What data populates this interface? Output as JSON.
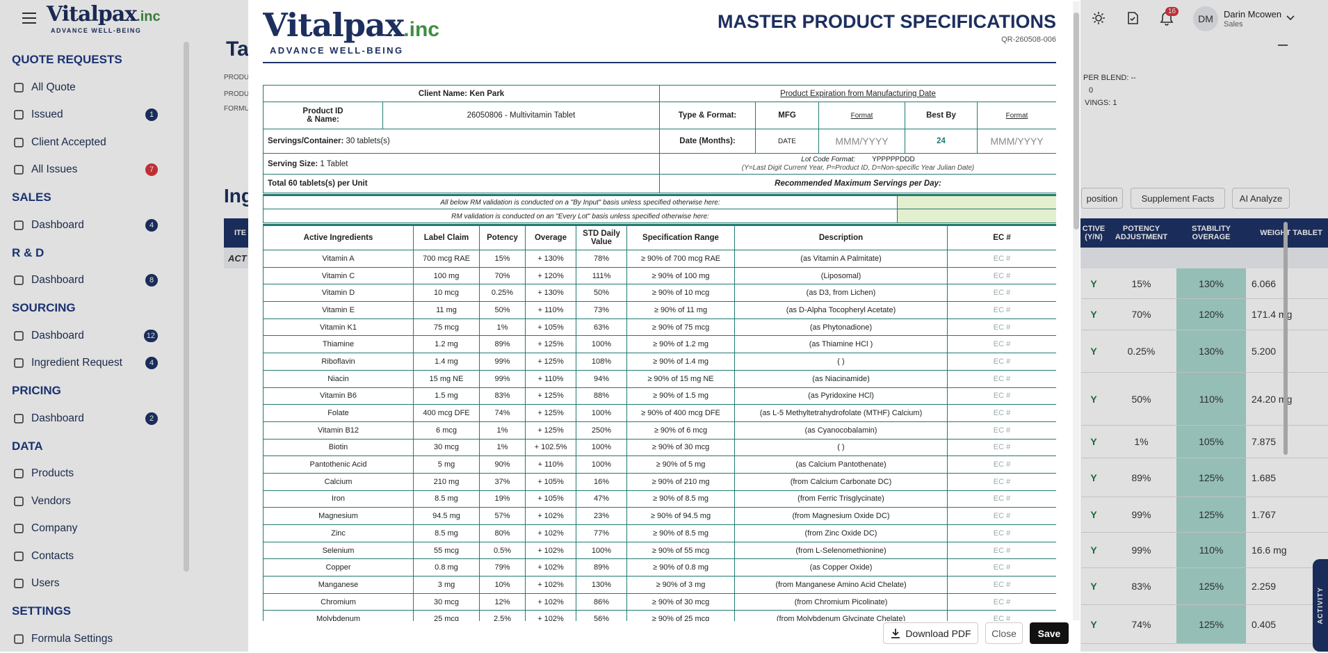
{
  "header": {
    "logo_text": "Vitalpax",
    "logo_suffix": ".inc",
    "tagline": "ADVANCE WELL-BEING",
    "notification_count": 16,
    "user_initials": "DM",
    "user_name": "Darin Mcowen",
    "user_role": "Sales"
  },
  "sidebar": {
    "sections": [
      {
        "title": "QUOTE REQUESTS",
        "items": [
          {
            "label": "All Quote"
          },
          {
            "label": "Issued",
            "badge": 1
          },
          {
            "label": "Client Accepted"
          },
          {
            "label": "All Issues",
            "badge": 7,
            "badge_color": "#d9363e"
          }
        ]
      },
      {
        "title": "SALES",
        "items": [
          {
            "label": "Dashboard",
            "badge": 4
          }
        ]
      },
      {
        "title": "R & D",
        "items": [
          {
            "label": "Dashboard",
            "badge": 8
          }
        ]
      },
      {
        "title": "SOURCING",
        "items": [
          {
            "label": "Dashboard",
            "badge": 12
          },
          {
            "label": "Ingredient Request",
            "badge": 4
          }
        ]
      },
      {
        "title": "PRICING",
        "items": [
          {
            "label": "Dashboard",
            "badge": 2
          }
        ]
      },
      {
        "title": "DATA",
        "items": [
          {
            "label": "Products"
          },
          {
            "label": "Vendors"
          },
          {
            "label": "Company"
          },
          {
            "label": "Contacts"
          },
          {
            "label": "Users"
          }
        ]
      },
      {
        "title": "SETTINGS",
        "items": [
          {
            "label": "Formula Settings"
          }
        ]
      }
    ]
  },
  "background": {
    "title_fragment": "Ta",
    "meta_fragments": [
      "PRODU",
      "PRODU",
      "FORMU"
    ],
    "section_fragment": "Ing",
    "table_header_fragment": "ITE",
    "group_fragment": "ACT",
    "right_meta": [
      "PER BLEND:  --",
      "0",
      "VINGS:  1"
    ],
    "buttons": [
      "position",
      "Supplement Facts",
      "AI Analyze"
    ],
    "columns": [
      "CTIVE (Y/N)",
      "POTENCY ADJUSTMENT",
      "STABILITY OVERAGE",
      "WEIGHT TABLET"
    ],
    "rows": [
      [
        "Y",
        "15%",
        "130%",
        "6.066"
      ],
      [
        "Y",
        "70%",
        "120%",
        "171.4 mg"
      ],
      [
        "Y",
        "0.25%",
        "130%",
        "5.200"
      ],
      [
        "Y",
        "50%",
        "110%",
        "24.20 mg"
      ],
      [
        "Y",
        "1%",
        "105%",
        "7.875"
      ],
      [
        "Y",
        "89%",
        "125%",
        "1.685"
      ],
      [
        "Y",
        "99%",
        "125%",
        "1.767"
      ],
      [
        "Y",
        "99%",
        "110%",
        "16.6 mg"
      ],
      [
        "Y",
        "83%",
        "125%",
        "2.259"
      ],
      [
        "Y",
        "74%",
        "125%",
        "0.405"
      ]
    ],
    "activity_tab": "ACTIVITY"
  },
  "modal": {
    "title": "MASTER PRODUCT SPECIFICATIONS",
    "reference": "QR-260508-006",
    "info": {
      "client_label": "Client Name:",
      "client_value": "Ken Park",
      "expiration_heading": "Product Expiration from Manufacturing Date",
      "product_label": [
        "Product ID",
        "& Name:"
      ],
      "product_value": "26050806 - Multivitamin Tablet",
      "type_label": "Type & Format:",
      "mfg": "MFG",
      "format_1": "Format",
      "best_by": "Best By",
      "format_2": "Format",
      "servings_label": "Servings/Container:",
      "servings_value": "30 tablets(s)",
      "date_label": "Date (Months):",
      "date_value": "DATE",
      "mfg_placeholder": "MMM/YYYY",
      "best_by_months": "24",
      "best_by_placeholder": "MMM/YYYY",
      "serving_size_label": "Serving Size:",
      "serving_size_value": "1 Tablet",
      "lot_code_label": "Lot Code Format:",
      "lot_code_value": "YPPPPPDDD",
      "lot_code_note": "(Y=Last Digit Current Year, P=Product ID, D=Non-specific Year Julian Date)",
      "total": "Total 60 tablets(s) per Unit",
      "max_servings": "Recommended Maximum Servings per Day:"
    },
    "validation": [
      "All below RM validation is conducted on a \"By Input\" basis unless specified otherwise here:",
      "RM validation is conducted on an \"Every Lot\" basis unless specified otherwise here:"
    ],
    "table": {
      "columns": [
        "Active Ingredients",
        "Label Claim",
        "Potency",
        "Overage",
        "STD Daily Value",
        "Specification Range",
        "Description",
        "EC #"
      ],
      "rows": [
        [
          "Vitamin A",
          "700 mcg RAE",
          "15%",
          "+ 130%",
          "78%",
          "≥ 90% of 700 mcg RAE",
          "(as Vitamin A Palmitate)",
          "EC #"
        ],
        [
          "Vitamin C",
          "100 mg",
          "70%",
          "+ 120%",
          "111%",
          "≥ 90% of 100 mg",
          "(Liposomal)",
          "EC #"
        ],
        [
          "Vitamin D",
          "10 mcg",
          "0.25%",
          "+ 130%",
          "50%",
          "≥ 90% of 10 mcg",
          "(as D3, from Lichen)",
          "EC #"
        ],
        [
          "Vitamin E",
          "11 mg",
          "50%",
          "+ 110%",
          "73%",
          "≥ 90% of 11 mg",
          "(as D-Alpha Tocopheryl Acetate)",
          "EC #"
        ],
        [
          "Vitamin K1",
          "75 mcg",
          "1%",
          "+ 105%",
          "63%",
          "≥ 90% of 75 mcg",
          "(as Phytonadione)",
          "EC #"
        ],
        [
          "Thiamine",
          "1.2 mg",
          "89%",
          "+ 125%",
          "100%",
          "≥ 90% of 1.2 mg",
          "(as Thiamine HCl )",
          "EC #"
        ],
        [
          "Riboflavin",
          "1.4 mg",
          "99%",
          "+ 125%",
          "108%",
          "≥ 90% of 1.4 mg",
          "( )",
          "EC #"
        ],
        [
          "Niacin",
          "15 mg NE",
          "99%",
          "+ 110%",
          "94%",
          "≥ 90% of 15 mg NE",
          "(as Niacinamide)",
          "EC #"
        ],
        [
          "Vitamin B6",
          "1.5 mg",
          "83%",
          "+ 125%",
          "88%",
          "≥ 90% of 1.5 mg",
          "(as Pyridoxine HCl)",
          "EC #"
        ],
        [
          "Folate",
          "400 mcg DFE",
          "74%",
          "+ 125%",
          "100%",
          "≥ 90% of 400 mcg DFE",
          "(as L-5 Methyltetrahydrofolate (MTHF) Calcium)",
          "EC #"
        ],
        [
          "Vitamin B12",
          "6 mcg",
          "1%",
          "+ 125%",
          "250%",
          "≥ 90% of 6 mcg",
          "(as Cyanocobalamin)",
          "EC #"
        ],
        [
          "Biotin",
          "30 mcg",
          "1%",
          "+ 102.5%",
          "100%",
          "≥ 90% of 30 mcg",
          "( )",
          "EC #"
        ],
        [
          "Pantothenic Acid",
          "5 mg",
          "90%",
          "+ 110%",
          "100%",
          "≥ 90% of 5 mg",
          "(as Calcium Pantothenate)",
          "EC #"
        ],
        [
          "Calcium",
          "210 mg",
          "37%",
          "+ 105%",
          "16%",
          "≥ 90% of 210 mg",
          "(from Calcium Carbonate DC)",
          "EC #"
        ],
        [
          "Iron",
          "8.5 mg",
          "19%",
          "+ 105%",
          "47%",
          "≥ 90% of 8.5 mg",
          "(from Ferric Trisglycinate)",
          "EC #"
        ],
        [
          "Magnesium",
          "94.5 mg",
          "57%",
          "+ 102%",
          "23%",
          "≥ 90% of 94.5 mg",
          "(from Magnesium Oxide DC)",
          "EC #"
        ],
        [
          "Zinc",
          "8.5 mg",
          "80%",
          "+ 102%",
          "77%",
          "≥ 90% of 8.5 mg",
          "(from Zinc Oxide DC)",
          "EC #"
        ],
        [
          "Selenium",
          "55 mcg",
          "0.5%",
          "+ 102%",
          "100%",
          "≥ 90% of 55 mcg",
          "(from L-Selenomethionine)",
          "EC #"
        ],
        [
          "Copper",
          "0.8 mg",
          "79%",
          "+ 102%",
          "89%",
          "≥ 90% of 0.8 mg",
          "(as Copper Oxide)",
          "EC #"
        ],
        [
          "Manganese",
          "3 mg",
          "10%",
          "+ 102%",
          "130%",
          "≥ 90% of 3 mg",
          "(from Manganese Amino Acid Chelate)",
          "EC #"
        ],
        [
          "Chromium",
          "30 mcg",
          "12%",
          "+ 102%",
          "86%",
          "≥ 90% of 30 mcg",
          "(from Chromium Picolinate)",
          "EC #"
        ],
        [
          "Molybdenum",
          "25 mcg",
          "2.5%",
          "+ 102%",
          "56%",
          "≥ 90% of 25 mcg",
          "(from Molybdenum Glycinate Chelate)",
          "EC #"
        ]
      ]
    },
    "buttons": {
      "download": "Download PDF",
      "close": "Close",
      "save": "Save"
    }
  }
}
